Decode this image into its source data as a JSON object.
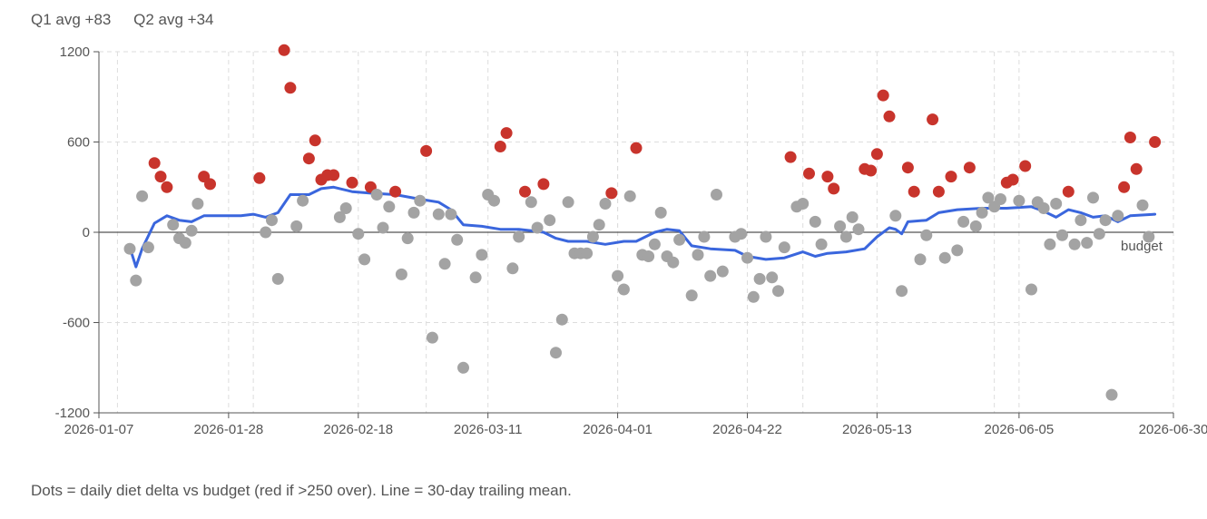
{
  "stats": [
    "Q1 avg +83",
    "Q2 avg +34"
  ],
  "caption": "Dots = daily diet delta vs budget (red if >250 over). Line = 30-day trailing mean.",
  "colors": {
    "over": "#c8342c",
    "normal": "#a3a3a3",
    "mean": "#3a66dd",
    "zero": "#555555",
    "grid": "#dddddd"
  },
  "chart_data": {
    "type": "scatter",
    "x_start": "2026-01-07",
    "x_end": "2026-06-30",
    "xlim": [
      "2026-01-07",
      "2026-06-30"
    ],
    "ylim": [
      -1200,
      1200
    ],
    "x_ticks": [
      "2026-01-07",
      "2026-01-28",
      "2026-02-18",
      "2026-03-11",
      "2026-04-01",
      "2026-04-22",
      "2026-05-13",
      "2026-06-05",
      "2026-06-30"
    ],
    "x_tick_labels": [
      "2026-01-07",
      "2026-01-28",
      "2026-02-18",
      "2026-03-11",
      "2026-04-01",
      "2026-04-22",
      "2026-05-13",
      "2026-06-05",
      "2026-06-30"
    ],
    "y_ticks": [
      -1200,
      -600,
      0,
      600,
      1200
    ],
    "y_tick_labels": [
      "-1200",
      "-600",
      "0",
      "600",
      "1200"
    ],
    "minor_grid_dates": [
      "2026-01-10",
      "2026-02-01",
      "2026-03-01",
      "2026-04-01",
      "2026-05-01",
      "2026-06-01"
    ],
    "threshold_over": 250,
    "reference_line": {
      "y": 0,
      "label": "budget"
    },
    "dots": [
      [
        "2026-01-12",
        -110
      ],
      [
        "2026-01-13",
        -320
      ],
      [
        "2026-01-14",
        240
      ],
      [
        "2026-01-15",
        -100
      ],
      [
        "2026-01-16",
        460
      ],
      [
        "2026-01-17",
        370
      ],
      [
        "2026-01-18",
        300
      ],
      [
        "2026-01-19",
        50
      ],
      [
        "2026-01-20",
        -40
      ],
      [
        "2026-01-21",
        -70
      ],
      [
        "2026-01-22",
        10
      ],
      [
        "2026-01-23",
        190
      ],
      [
        "2026-01-24",
        370
      ],
      [
        "2026-01-25",
        320
      ],
      [
        "2026-02-02",
        360
      ],
      [
        "2026-02-03",
        0
      ],
      [
        "2026-02-04",
        80
      ],
      [
        "2026-02-05",
        -310
      ],
      [
        "2026-02-06",
        1210
      ],
      [
        "2026-02-07",
        960
      ],
      [
        "2026-02-08",
        40
      ],
      [
        "2026-02-09",
        210
      ],
      [
        "2026-02-10",
        490
      ],
      [
        "2026-02-11",
        610
      ],
      [
        "2026-02-12",
        350
      ],
      [
        "2026-02-13",
        380
      ],
      [
        "2026-02-14",
        380
      ],
      [
        "2026-02-15",
        100
      ],
      [
        "2026-02-16",
        160
      ],
      [
        "2026-02-17",
        330
      ],
      [
        "2026-02-18",
        -10
      ],
      [
        "2026-02-19",
        -180
      ],
      [
        "2026-02-20",
        300
      ],
      [
        "2026-02-21",
        250
      ],
      [
        "2026-02-22",
        30
      ],
      [
        "2026-02-23",
        170
      ],
      [
        "2026-02-24",
        270
      ],
      [
        "2026-02-25",
        -280
      ],
      [
        "2026-02-26",
        -40
      ],
      [
        "2026-02-27",
        130
      ],
      [
        "2026-02-28",
        210
      ],
      [
        "2026-03-01",
        540
      ],
      [
        "2026-03-02",
        -700
      ],
      [
        "2026-03-03",
        120
      ],
      [
        "2026-03-04",
        -210
      ],
      [
        "2026-03-05",
        120
      ],
      [
        "2026-03-06",
        -50
      ],
      [
        "2026-03-07",
        -900
      ],
      [
        "2026-03-09",
        -300
      ],
      [
        "2026-03-10",
        -150
      ],
      [
        "2026-03-11",
        250
      ],
      [
        "2026-03-12",
        210
      ],
      [
        "2026-03-13",
        570
      ],
      [
        "2026-03-14",
        660
      ],
      [
        "2026-03-15",
        -240
      ],
      [
        "2026-03-16",
        -30
      ],
      [
        "2026-03-17",
        270
      ],
      [
        "2026-03-18",
        200
      ],
      [
        "2026-03-19",
        30
      ],
      [
        "2026-03-20",
        320
      ],
      [
        "2026-03-21",
        80
      ],
      [
        "2026-03-22",
        -800
      ],
      [
        "2026-03-23",
        -580
      ],
      [
        "2026-03-24",
        200
      ],
      [
        "2026-03-25",
        -140
      ],
      [
        "2026-03-26",
        -140
      ],
      [
        "2026-03-27",
        -140
      ],
      [
        "2026-03-28",
        -30
      ],
      [
        "2026-03-29",
        50
      ],
      [
        "2026-03-30",
        190
      ],
      [
        "2026-03-31",
        260
      ],
      [
        "2026-04-01",
        -290
      ],
      [
        "2026-04-02",
        -380
      ],
      [
        "2026-04-03",
        240
      ],
      [
        "2026-04-04",
        560
      ],
      [
        "2026-04-05",
        -150
      ],
      [
        "2026-04-06",
        -160
      ],
      [
        "2026-04-07",
        -80
      ],
      [
        "2026-04-08",
        130
      ],
      [
        "2026-04-09",
        -160
      ],
      [
        "2026-04-10",
        -200
      ],
      [
        "2026-04-11",
        -50
      ],
      [
        "2026-04-13",
        -420
      ],
      [
        "2026-04-14",
        -150
      ],
      [
        "2026-04-15",
        -30
      ],
      [
        "2026-04-16",
        -290
      ],
      [
        "2026-04-17",
        250
      ],
      [
        "2026-04-18",
        -260
      ],
      [
        "2026-04-20",
        -30
      ],
      [
        "2026-04-21",
        -10
      ],
      [
        "2026-04-22",
        -170
      ],
      [
        "2026-04-23",
        -430
      ],
      [
        "2026-04-24",
        -310
      ],
      [
        "2026-04-25",
        -30
      ],
      [
        "2026-04-26",
        -300
      ],
      [
        "2026-04-27",
        -390
      ],
      [
        "2026-04-28",
        -100
      ],
      [
        "2026-04-29",
        500
      ],
      [
        "2026-04-30",
        170
      ],
      [
        "2026-05-01",
        190
      ],
      [
        "2026-05-02",
        390
      ],
      [
        "2026-05-03",
        70
      ],
      [
        "2026-05-04",
        -80
      ],
      [
        "2026-05-05",
        370
      ],
      [
        "2026-05-06",
        290
      ],
      [
        "2026-05-07",
        40
      ],
      [
        "2026-05-08",
        -30
      ],
      [
        "2026-05-09",
        100
      ],
      [
        "2026-05-10",
        20
      ],
      [
        "2026-05-11",
        420
      ],
      [
        "2026-05-12",
        410
      ],
      [
        "2026-05-13",
        520
      ],
      [
        "2026-05-14",
        910
      ],
      [
        "2026-05-15",
        770
      ],
      [
        "2026-05-16",
        110
      ],
      [
        "2026-05-17",
        -390
      ],
      [
        "2026-05-18",
        430
      ],
      [
        "2026-05-19",
        270
      ],
      [
        "2026-05-20",
        -180
      ],
      [
        "2026-05-21",
        -20
      ],
      [
        "2026-05-22",
        750
      ],
      [
        "2026-05-23",
        270
      ],
      [
        "2026-05-24",
        -170
      ],
      [
        "2026-05-25",
        370
      ],
      [
        "2026-05-26",
        -120
      ],
      [
        "2026-05-27",
        70
      ],
      [
        "2026-05-28",
        430
      ],
      [
        "2026-05-29",
        40
      ],
      [
        "2026-05-30",
        130
      ],
      [
        "2026-05-31",
        230
      ],
      [
        "2026-06-01",
        170
      ],
      [
        "2026-06-02",
        220
      ],
      [
        "2026-06-03",
        330
      ],
      [
        "2026-06-04",
        350
      ],
      [
        "2026-06-05",
        210
      ],
      [
        "2026-06-06",
        440
      ],
      [
        "2026-06-07",
        -380
      ],
      [
        "2026-06-08",
        200
      ],
      [
        "2026-06-09",
        160
      ],
      [
        "2026-06-10",
        -80
      ],
      [
        "2026-06-11",
        190
      ],
      [
        "2026-06-12",
        -20
      ],
      [
        "2026-06-13",
        270
      ],
      [
        "2026-06-14",
        -80
      ],
      [
        "2026-06-15",
        80
      ],
      [
        "2026-06-16",
        -70
      ],
      [
        "2026-06-17",
        230
      ],
      [
        "2026-06-18",
        -10
      ],
      [
        "2026-06-19",
        80
      ],
      [
        "2026-06-20",
        -1080
      ],
      [
        "2026-06-21",
        110
      ],
      [
        "2026-06-22",
        300
      ],
      [
        "2026-06-23",
        630
      ],
      [
        "2026-06-24",
        420
      ],
      [
        "2026-06-25",
        180
      ],
      [
        "2026-06-26",
        -30
      ],
      [
        "2026-06-27",
        600
      ]
    ],
    "trailing_mean": [
      [
        "2026-01-12",
        -100
      ],
      [
        "2026-01-13",
        -230
      ],
      [
        "2026-01-14",
        -110
      ],
      [
        "2026-01-16",
        60
      ],
      [
        "2026-01-18",
        110
      ],
      [
        "2026-01-20",
        80
      ],
      [
        "2026-01-22",
        70
      ],
      [
        "2026-01-24",
        110
      ],
      [
        "2026-01-30",
        110
      ],
      [
        "2026-02-01",
        120
      ],
      [
        "2026-02-03",
        100
      ],
      [
        "2026-02-05",
        130
      ],
      [
        "2026-02-07",
        250
      ],
      [
        "2026-02-10",
        250
      ],
      [
        "2026-02-12",
        290
      ],
      [
        "2026-02-14",
        300
      ],
      [
        "2026-02-17",
        270
      ],
      [
        "2026-02-20",
        260
      ],
      [
        "2026-02-24",
        250
      ],
      [
        "2026-02-28",
        220
      ],
      [
        "2026-03-03",
        200
      ],
      [
        "2026-03-05",
        150
      ],
      [
        "2026-03-07",
        50
      ],
      [
        "2026-03-10",
        40
      ],
      [
        "2026-03-13",
        20
      ],
      [
        "2026-03-16",
        20
      ],
      [
        "2026-03-18",
        10
      ],
      [
        "2026-03-20",
        0
      ],
      [
        "2026-03-22",
        -40
      ],
      [
        "2026-03-24",
        -60
      ],
      [
        "2026-03-27",
        -60
      ],
      [
        "2026-03-30",
        -80
      ],
      [
        "2026-04-02",
        -60
      ],
      [
        "2026-04-04",
        -60
      ],
      [
        "2026-04-07",
        0
      ],
      [
        "2026-04-09",
        20
      ],
      [
        "2026-04-11",
        10
      ],
      [
        "2026-04-13",
        -90
      ],
      [
        "2026-04-16",
        -110
      ],
      [
        "2026-04-20",
        -120
      ],
      [
        "2026-04-22",
        -160
      ],
      [
        "2026-04-25",
        -180
      ],
      [
        "2026-04-28",
        -170
      ],
      [
        "2026-05-01",
        -130
      ],
      [
        "2026-05-03",
        -160
      ],
      [
        "2026-05-05",
        -140
      ],
      [
        "2026-05-08",
        -130
      ],
      [
        "2026-05-11",
        -110
      ],
      [
        "2026-05-13",
        -30
      ],
      [
        "2026-05-15",
        30
      ],
      [
        "2026-05-16",
        20
      ],
      [
        "2026-05-17",
        -10
      ],
      [
        "2026-05-18",
        70
      ],
      [
        "2026-05-21",
        80
      ],
      [
        "2026-05-23",
        130
      ],
      [
        "2026-05-26",
        150
      ],
      [
        "2026-05-30",
        160
      ],
      [
        "2026-06-03",
        160
      ],
      [
        "2026-06-07",
        170
      ],
      [
        "2026-06-09",
        140
      ],
      [
        "2026-06-11",
        100
      ],
      [
        "2026-06-13",
        150
      ],
      [
        "2026-06-15",
        130
      ],
      [
        "2026-06-17",
        100
      ],
      [
        "2026-06-19",
        110
      ],
      [
        "2026-06-21",
        70
      ],
      [
        "2026-06-23",
        110
      ],
      [
        "2026-06-27",
        120
      ]
    ]
  }
}
